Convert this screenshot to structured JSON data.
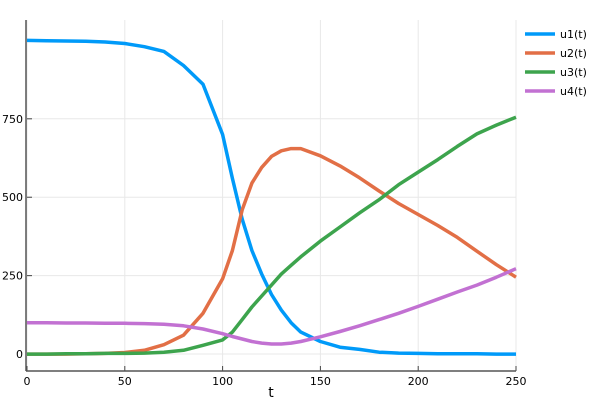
{
  "chart_data": {
    "type": "line",
    "title": "",
    "xlabel": "t",
    "ylabel": "",
    "xlim": [
      0,
      250
    ],
    "ylim": [
      -54,
      1065
    ],
    "xticks": [
      0,
      50,
      100,
      150,
      200,
      250
    ],
    "yticks": [
      0,
      250,
      500,
      750
    ],
    "grid": true,
    "legend": "top-right",
    "x": [
      0,
      10,
      20,
      30,
      40,
      50,
      60,
      70,
      80,
      90,
      100,
      105,
      110,
      115,
      120,
      125,
      130,
      135,
      140,
      150,
      160,
      170,
      180,
      190,
      200,
      210,
      220,
      230,
      240,
      250
    ],
    "series": [
      {
        "name": "u1(t)",
        "color": "#009af9",
        "values": [
          1000,
          999,
          998,
          997,
          995,
          990,
          980,
          965,
          920,
          860,
          700,
          560,
          430,
          330,
          255,
          190,
          140,
          100,
          70,
          40,
          22,
          15,
          6,
          3,
          2,
          1,
          1,
          1,
          0,
          0
        ]
      },
      {
        "name": "u2(t)",
        "color": "#e26f46",
        "values": [
          0,
          0,
          0,
          1,
          2,
          5,
          12,
          30,
          60,
          130,
          240,
          330,
          460,
          545,
          595,
          630,
          648,
          655,
          655,
          632,
          600,
          562,
          520,
          480,
          445,
          410,
          372,
          328,
          285,
          245
        ]
      },
      {
        "name": "u3(t)",
        "color": "#3da44d",
        "values": [
          0,
          0,
          1,
          1,
          2,
          2,
          3,
          6,
          12,
          28,
          45,
          70,
          110,
          150,
          185,
          220,
          255,
          283,
          310,
          360,
          405,
          450,
          492,
          540,
          580,
          620,
          662,
          702,
          730,
          755
        ]
      },
      {
        "name": "u4(t)",
        "color": "#c271d2",
        "values": [
          100,
          100,
          99,
          99,
          98,
          98,
          97,
          95,
          90,
          80,
          65,
          56,
          48,
          40,
          35,
          32,
          32,
          35,
          40,
          55,
          72,
          90,
          110,
          130,
          152,
          175,
          198,
          220,
          245,
          272
        ]
      }
    ]
  }
}
